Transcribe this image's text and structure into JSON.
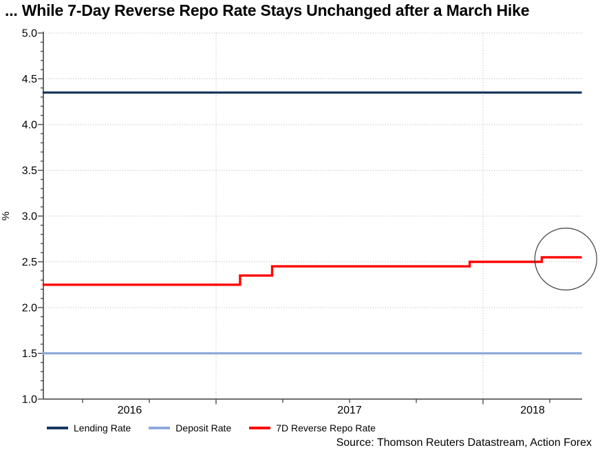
{
  "title": "... While 7-Day Reverse Repo Rate Stays Unchanged after a March Hike",
  "source": "Source: Thomson Reuters Datastream, Action Forex",
  "legend": {
    "items": [
      {
        "label": "Lending Rate",
        "color": "#17375E"
      },
      {
        "label": "Deposit Rate",
        "color": "#8EA9DB"
      },
      {
        "label": "7D Reverse Repo Rate",
        "color": "#FF0000"
      }
    ]
  },
  "chart_data": {
    "type": "line",
    "title": "... While 7-Day Reverse Repo Rate Stays Unchanged after a March Hike",
    "xlabel": "",
    "ylabel": "%",
    "ylim": [
      1.0,
      5.0
    ],
    "y_tick_step": 0.5,
    "y_minor_tick_step": 0.1,
    "y_tick_labels": [
      "1.0",
      "1.5",
      "2.0",
      "2.5",
      "3.0",
      "3.5",
      "4.0",
      "4.5",
      "5.0"
    ],
    "x_domain_years": [
      2016.35,
      2018.37
    ],
    "x_year_labels": [
      "2016",
      "2017",
      "2018"
    ],
    "x_year_gridlines": [
      2017,
      2018
    ],
    "x_quarter_tick_step": 0.25,
    "grid": true,
    "grid_style": "dotted",
    "legend_position": "bottom",
    "series": [
      {
        "name": "Lending Rate",
        "color": "#17375E",
        "stroke_width": 3.2,
        "points": [
          [
            2016.35,
            4.35
          ],
          [
            2018.37,
            4.35
          ]
        ]
      },
      {
        "name": "Deposit Rate",
        "color": "#8EA9DB",
        "stroke_width": 3.2,
        "points": [
          [
            2016.35,
            1.5
          ],
          [
            2018.37,
            1.5
          ]
        ]
      },
      {
        "name": "7D Reverse Repo Rate",
        "color": "#FF0000",
        "stroke_width": 3.4,
        "points": [
          [
            2016.35,
            2.25
          ],
          [
            2017.09,
            2.25
          ],
          [
            2017.09,
            2.35
          ],
          [
            2017.21,
            2.35
          ],
          [
            2017.21,
            2.45
          ],
          [
            2017.95,
            2.45
          ],
          [
            2017.95,
            2.5
          ],
          [
            2018.22,
            2.5
          ],
          [
            2018.22,
            2.55
          ],
          [
            2018.37,
            2.55
          ]
        ]
      }
    ],
    "annotation_circle": {
      "x_year": 2018.31,
      "y_value": 2.53,
      "radius_px": 45
    }
  },
  "colors": {
    "axis": "#595959",
    "tick": "#3f3f3f",
    "grid": "#ababab",
    "annotation": "#3c3c3c",
    "text": "#000000"
  }
}
